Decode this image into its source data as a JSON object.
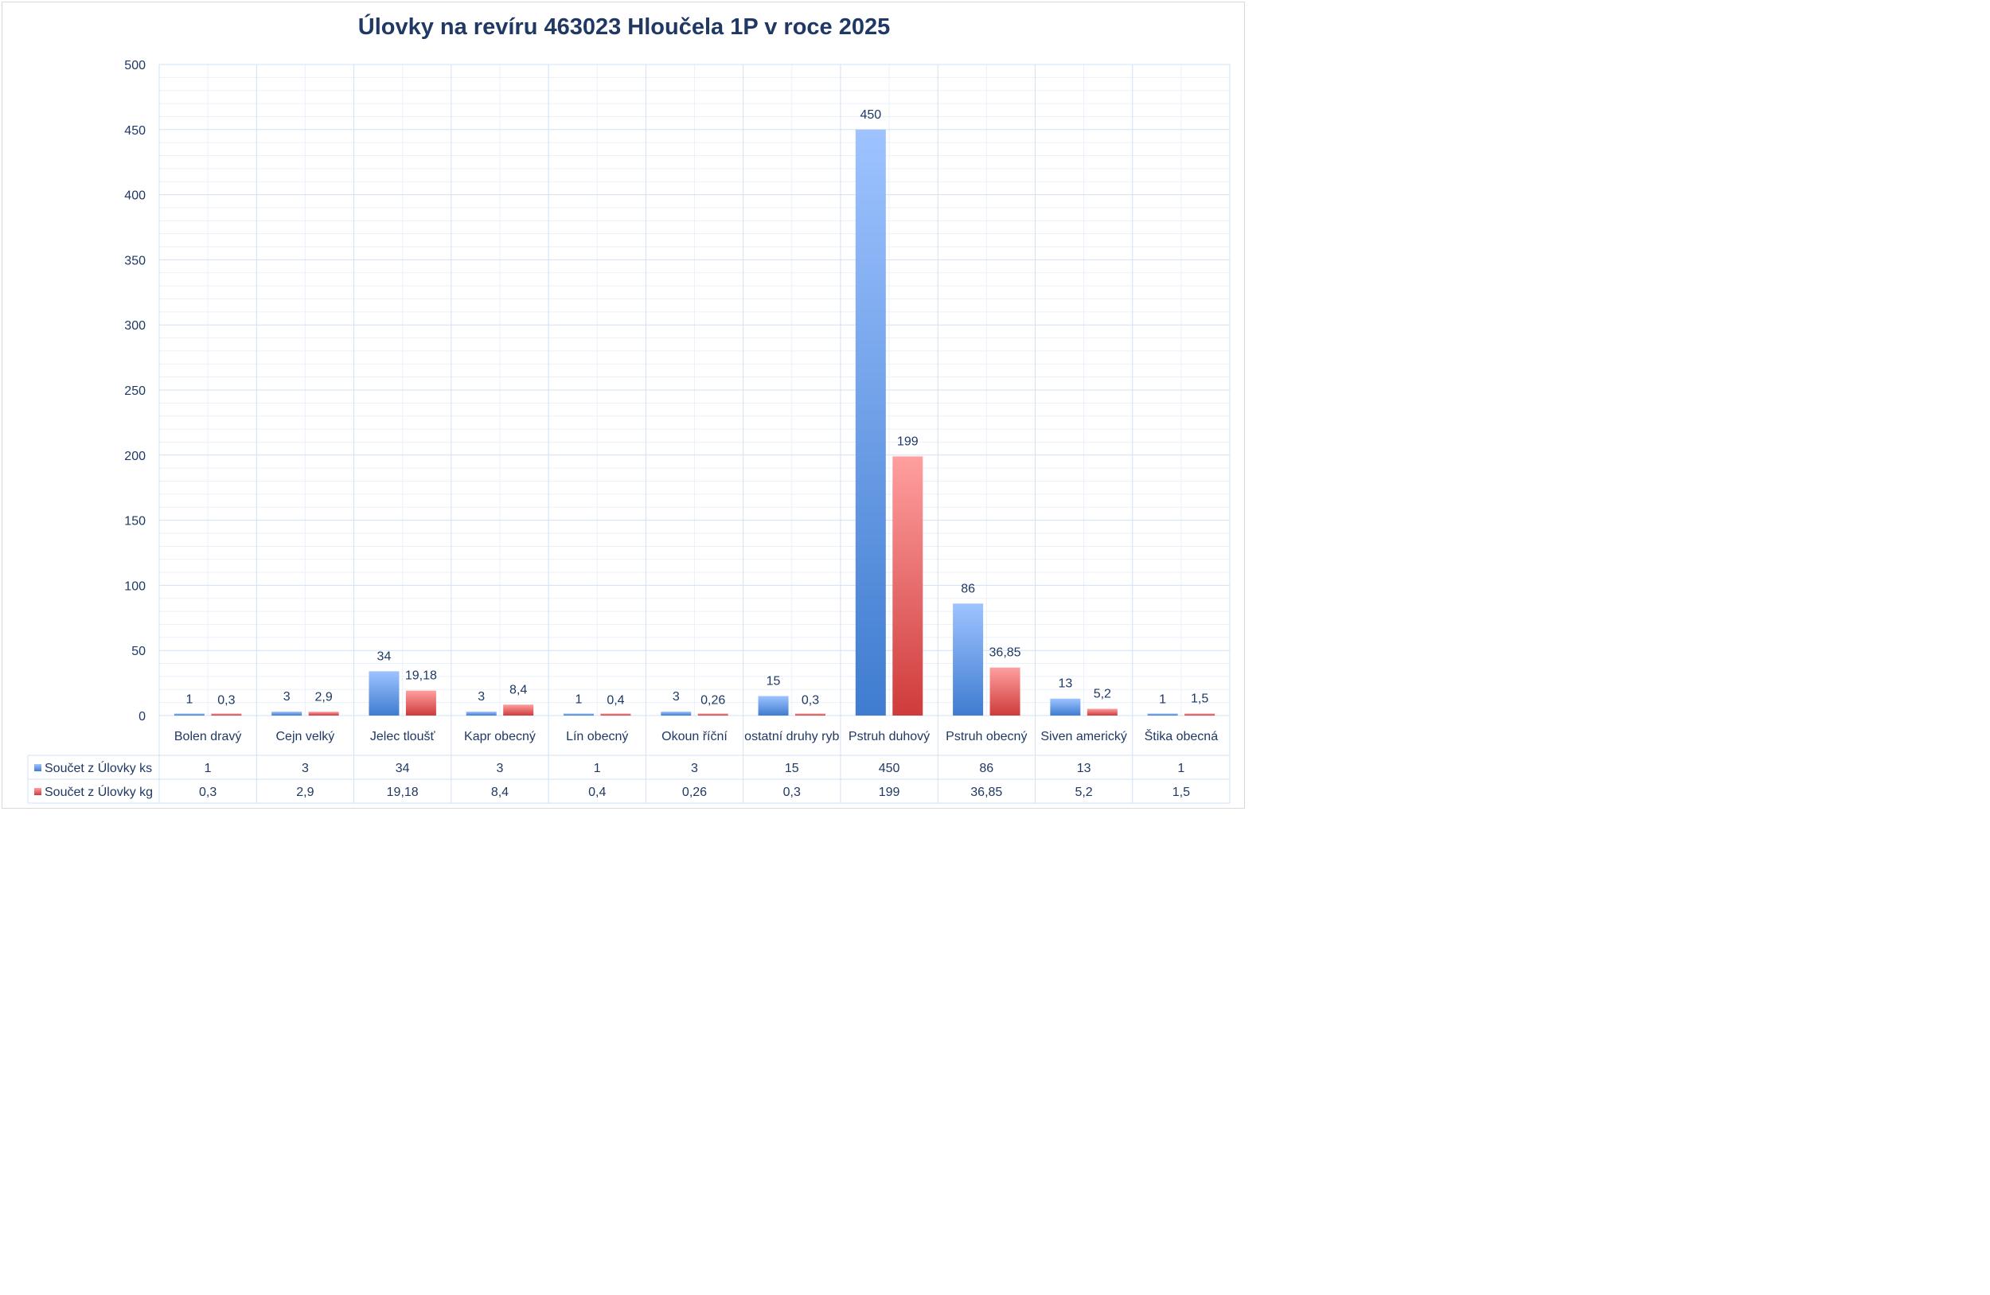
{
  "chart_data": {
    "type": "bar",
    "title": "Úlovky na revíru 463023 Hloučela 1P v roce 2025",
    "categories": [
      "Bolen dravý",
      "Cejn velký",
      "Jelec tloušť",
      "Kapr obecný",
      "Lín obecný",
      "Okoun říční",
      "ostatní druhy ryb",
      "Pstruh duhový",
      "Pstruh obecný",
      "Siven americký",
      "Štika obecná"
    ],
    "series": [
      {
        "name": "Součet z Úlovky ks",
        "color": "#4a86d4",
        "values": [
          1,
          3,
          34,
          3,
          1,
          3,
          15,
          450,
          86,
          13,
          1
        ],
        "labels": [
          "1",
          "3",
          "34",
          "3",
          "1",
          "3",
          "15",
          "450",
          "86",
          "13",
          "1"
        ]
      },
      {
        "name": "Součet z Úlovky kg",
        "color": "#d84545",
        "values": [
          0.3,
          2.9,
          19.18,
          8.4,
          0.4,
          0.26,
          0.3,
          199,
          36.85,
          5.2,
          1.5
        ],
        "labels": [
          "0,3",
          "2,9",
          "19,18",
          "8,4",
          "0,4",
          "0,26",
          "0,3",
          "199",
          "36,85",
          "5,2",
          "1,5"
        ]
      }
    ],
    "ylim": [
      0,
      500
    ],
    "yticks": [
      "0",
      "50",
      "100",
      "150",
      "200",
      "250",
      "300",
      "350",
      "400",
      "450",
      "500"
    ],
    "xlabel": "",
    "ylabel": "",
    "grid": true,
    "legend": "data-table"
  }
}
